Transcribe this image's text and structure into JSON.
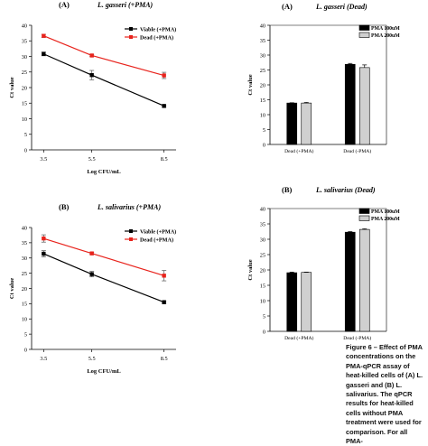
{
  "chart_data": [
    {
      "id": "A_line",
      "type": "line",
      "panel_letter": "(A)",
      "title": "L. gasseri (+PMA)",
      "xlabel": "Log CFU/mL",
      "ylabel": "Ct value",
      "x": [
        3.5,
        5.5,
        8.5
      ],
      "xlim": [
        3,
        9
      ],
      "ylim": [
        0,
        40
      ],
      "yticks": [
        0,
        5,
        10,
        15,
        20,
        25,
        30,
        35,
        40
      ],
      "grid": false,
      "legend_position": "top-right",
      "series": [
        {
          "name": "Viable (+PMA)",
          "marker": "square",
          "color": "#000000",
          "values": [
            30.8,
            24.0,
            14.1
          ],
          "errors": [
            0.6,
            1.5,
            0.3
          ]
        },
        {
          "name": "Dead (+PMA)",
          "marker": "square",
          "color": "#e8231c",
          "values": [
            36.6,
            30.3,
            23.9
          ],
          "errors": [
            0.5,
            0.3,
            1.0
          ]
        }
      ]
    },
    {
      "id": "A_bar",
      "type": "bar",
      "panel_letter": "(A)",
      "title": "L. gasseri (Dead)",
      "xlabel": "",
      "ylabel": "Ct value",
      "categories": [
        "Dead (+PMA)",
        "Dead (-PMA)"
      ],
      "ylim": [
        0,
        40
      ],
      "yticks": [
        0,
        5,
        10,
        15,
        20,
        25,
        30,
        35,
        40
      ],
      "legend_position": "top-right",
      "series": [
        {
          "name": "PMA 100uM",
          "color": "#000000",
          "values": [
            13.9,
            26.9
          ],
          "errors": [
            0.1,
            0.3
          ]
        },
        {
          "name": "PMA 200uM",
          "color": "#d0d0d0",
          "values": [
            13.9,
            25.8
          ],
          "errors": [
            0.2,
            0.9
          ]
        }
      ]
    },
    {
      "id": "B_line",
      "type": "line",
      "panel_letter": "(B)",
      "title": "L. salivarius (+PMA)",
      "xlabel": "Log CFU/mL",
      "ylabel": "Ct value",
      "x": [
        3.5,
        5.5,
        8.5
      ],
      "xlim": [
        3,
        9
      ],
      "ylim": [
        0,
        40
      ],
      "yticks": [
        0,
        5,
        10,
        15,
        20,
        25,
        30,
        35,
        40
      ],
      "grid": false,
      "legend_position": "top-right",
      "series": [
        {
          "name": "Viable (+PMA)",
          "marker": "square",
          "color": "#000000",
          "values": [
            31.4,
            24.7,
            15.5
          ],
          "errors": [
            1.0,
            0.9,
            0.4
          ]
        },
        {
          "name": "Dead (+PMA)",
          "marker": "square",
          "color": "#e8231c",
          "values": [
            36.4,
            31.5,
            24.2
          ],
          "errors": [
            1.2,
            0.3,
            1.7
          ]
        }
      ]
    },
    {
      "id": "B_bar",
      "type": "bar",
      "panel_letter": "(B)",
      "title": "L. salivarius (Dead)",
      "xlabel": "",
      "ylabel": "Ct value",
      "categories": [
        "Dead (+PMA)",
        "Dead (-PMA)"
      ],
      "ylim": [
        0,
        40
      ],
      "yticks": [
        0,
        5,
        10,
        15,
        20,
        25,
        30,
        35,
        40
      ],
      "legend_position": "top-right",
      "series": [
        {
          "name": "PMA 100uM",
          "color": "#000000",
          "values": [
            19.1,
            32.3
          ],
          "errors": [
            0.2,
            0.2
          ]
        },
        {
          "name": "PMA 200uM",
          "color": "#d0d0d0",
          "values": [
            19.2,
            33.2
          ],
          "errors": [
            0.1,
            0.2
          ]
        }
      ]
    }
  ],
  "caption": {
    "text": "Figure 6 – Effect of PMA concentrations on the PMA-qPCR assay of heat-killed cells of (A) L. gasseri and (B) L. salivarius. The qPCR results for heat-killed cells without PMA treatment were used for comparison. For all PMA-"
  }
}
